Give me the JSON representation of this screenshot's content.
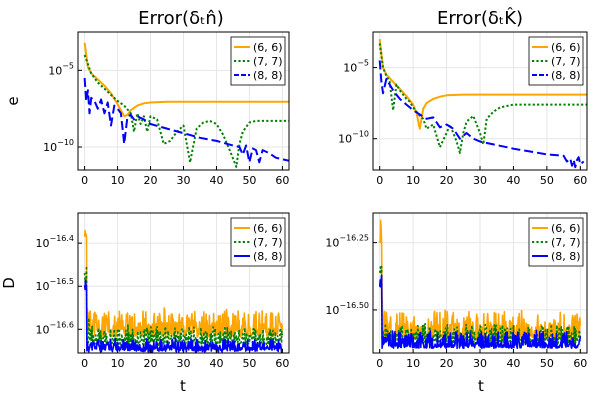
{
  "figure_type": "2x2 grid of line plots",
  "colors": {
    "(6, 6)": "#ffa500",
    "(7, 7)": "#008000",
    "(8, 8)": "#0000ff"
  },
  "chart_data": [
    {
      "id": "top-left",
      "type": "line",
      "title": "Error(δₜn̂)",
      "xlabel": "",
      "ylabel": "e",
      "yscale": "log10",
      "xlim": [
        -2,
        62
      ],
      "ylim_log10": [
        -11.5,
        -2.5
      ],
      "xticks": [
        0,
        10,
        20,
        30,
        40,
        50,
        60
      ],
      "xtick_labels": [
        "0",
        "10",
        "20",
        "30",
        "40",
        "50",
        "60"
      ],
      "yticks_log10": [
        -10,
        -5
      ],
      "ytick_labels": [
        {
          "base": "10",
          "exp": "−10"
        },
        {
          "base": "10",
          "exp": "−5"
        }
      ],
      "legend": {
        "position": "top-right",
        "entries": [
          "(6, 6)",
          "(7, 7)",
          "(8, 8)"
        ]
      },
      "series": [
        {
          "name": "(6, 6)",
          "color": "#ffa500",
          "dash": "solid",
          "x": [
            0,
            1,
            2,
            4,
            6,
            8,
            10,
            11,
            12,
            13,
            14,
            16,
            18,
            20,
            25,
            30,
            40,
            50,
            62
          ],
          "log10y": [
            -3.2,
            -4.8,
            -5.2,
            -5.6,
            -6.0,
            -6.5,
            -7.2,
            -7.6,
            -8.0,
            -7.9,
            -7.6,
            -7.3,
            -7.15,
            -7.1,
            -7.05,
            -7.05,
            -7.05,
            -7.05,
            -7.05
          ]
        },
        {
          "name": "(7, 7)",
          "color": "#008000",
          "dash": "dotted",
          "x": [
            0,
            2,
            4,
            6,
            8,
            10,
            12,
            14,
            15,
            16,
            17,
            18,
            19,
            20,
            22,
            24,
            26,
            28,
            30,
            32,
            34,
            36,
            38,
            40,
            42,
            44,
            46,
            47,
            48,
            50,
            52,
            56,
            62
          ],
          "log10y": [
            -4.0,
            -5.2,
            -5.8,
            -6.2,
            -6.6,
            -7.0,
            -7.3,
            -7.8,
            -9.0,
            -7.8,
            -8.5,
            -8.0,
            -9.0,
            -8.0,
            -8.2,
            -9.8,
            -9.6,
            -9.0,
            -8.6,
            -11.0,
            -8.8,
            -8.4,
            -8.3,
            -8.5,
            -9.2,
            -10.2,
            -11.3,
            -9.8,
            -9.0,
            -8.4,
            -8.3,
            -8.3,
            -8.3
          ]
        },
        {
          "name": "(8, 8)",
          "color": "#0000ff",
          "dash": "dashed",
          "x": [
            0,
            0.5,
            1,
            1.5,
            2,
            3,
            4,
            5,
            6,
            7,
            8,
            9,
            10,
            11,
            12,
            13,
            14,
            15,
            16,
            18,
            20,
            25,
            30,
            35,
            40,
            45,
            47,
            48,
            49,
            50,
            51,
            52,
            53,
            54,
            56,
            58,
            62
          ],
          "log10y": [
            -5.5,
            -7.0,
            -6.3,
            -7.8,
            -6.8,
            -7.0,
            -7.5,
            -6.9,
            -7.8,
            -7.1,
            -8.6,
            -7.3,
            -7.5,
            -7.8,
            -9.8,
            -8.0,
            -7.9,
            -8.2,
            -8.0,
            -8.2,
            -8.5,
            -8.8,
            -9.1,
            -9.4,
            -9.6,
            -9.9,
            -10.0,
            -10.5,
            -9.9,
            -11.0,
            -10.1,
            -10.2,
            -11.0,
            -10.2,
            -10.4,
            -10.7,
            -10.9
          ]
        }
      ]
    },
    {
      "id": "top-right",
      "type": "line",
      "title": "Error(δₜK̂)",
      "xlabel": "",
      "ylabel": "",
      "yscale": "log10",
      "xlim": [
        -2,
        62
      ],
      "ylim_log10": [
        -12.2,
        -2.5
      ],
      "xticks": [
        0,
        10,
        20,
        30,
        40,
        50,
        60
      ],
      "xtick_labels": [
        "0",
        "10",
        "20",
        "30",
        "40",
        "50",
        "60"
      ],
      "yticks_log10": [
        -10,
        -5
      ],
      "ytick_labels": [
        {
          "base": "10",
          "exp": "−10"
        },
        {
          "base": "10",
          "exp": "−5"
        }
      ],
      "legend": {
        "position": "top-right",
        "entries": [
          "(6, 6)",
          "(7, 7)",
          "(8, 8)"
        ]
      },
      "series": [
        {
          "name": "(6, 6)",
          "color": "#ffa500",
          "dash": "solid",
          "x": [
            0,
            1,
            2,
            4,
            6,
            8,
            10,
            11,
            12,
            13,
            14,
            16,
            18,
            20,
            25,
            30,
            40,
            50,
            62
          ],
          "log10y": [
            -3.0,
            -5.0,
            -5.5,
            -6.0,
            -6.5,
            -7.0,
            -7.6,
            -8.2,
            -9.3,
            -7.9,
            -7.5,
            -7.2,
            -7.05,
            -6.95,
            -6.9,
            -6.9,
            -6.9,
            -6.9,
            -6.9
          ]
        },
        {
          "name": "(7, 7)",
          "color": "#008000",
          "dash": "dotted",
          "x": [
            0,
            1,
            2,
            3,
            4,
            5,
            6,
            7,
            8,
            9,
            10,
            11,
            12,
            13,
            14,
            16,
            18,
            20,
            21,
            22,
            23,
            24,
            25,
            26,
            28,
            30,
            31,
            32,
            34,
            36,
            40,
            46,
            62
          ],
          "log10y": [
            -3.3,
            -5.0,
            -5.6,
            -6.0,
            -8.0,
            -6.2,
            -6.6,
            -6.9,
            -7.2,
            -7.4,
            -7.8,
            -8.1,
            -8.4,
            -8.6,
            -9.3,
            -9.0,
            -10.6,
            -9.6,
            -9.0,
            -9.6,
            -10.2,
            -11.0,
            -9.6,
            -8.8,
            -8.4,
            -9.6,
            -10.4,
            -8.6,
            -8.1,
            -7.8,
            -7.6,
            -7.6,
            -7.6
          ]
        },
        {
          "name": "(8, 8)",
          "color": "#0000ff",
          "dash": "dashed",
          "x": [
            0,
            0.5,
            1,
            2,
            3,
            4,
            5,
            6,
            7,
            8,
            9,
            10,
            12,
            14,
            16,
            18,
            20,
            22,
            24,
            26,
            28,
            30,
            32,
            34,
            36,
            38,
            40,
            45,
            50,
            55,
            56,
            57,
            57.5,
            58,
            58.5,
            59,
            59.5,
            60,
            61
          ],
          "log10y": [
            -4.5,
            -6.0,
            -6.8,
            -5.8,
            -6.2,
            -6.6,
            -6.9,
            -7.2,
            -7.4,
            -7.6,
            -7.8,
            -8.0,
            -8.3,
            -8.6,
            -8.5,
            -9.2,
            -9.0,
            -9.3,
            -10.0,
            -9.6,
            -10.0,
            -10.2,
            -10.3,
            -10.4,
            -10.5,
            -10.6,
            -10.7,
            -10.9,
            -11.1,
            -11.2,
            -11.6,
            -11.4,
            -11.9,
            -11.5,
            -12.0,
            -11.5,
            -11.3,
            -11.8,
            -11.6
          ]
        }
      ]
    },
    {
      "id": "bottom-left",
      "type": "line",
      "title": "",
      "xlabel": "t",
      "ylabel": "D",
      "yscale": "log10",
      "xlim": [
        -2,
        62
      ],
      "ylim_log10": [
        -16.655,
        -16.33
      ],
      "xticks": [
        0,
        10,
        20,
        30,
        40,
        50,
        60
      ],
      "xtick_labels": [
        "0",
        "10",
        "20",
        "30",
        "40",
        "50",
        "60"
      ],
      "yticks_log10": [
        -16.6,
        -16.5,
        -16.4
      ],
      "ytick_labels": [
        {
          "base": "10",
          "exp": "−16.6"
        },
        {
          "base": "10",
          "exp": "−16.5"
        },
        {
          "base": "10",
          "exp": "−16.4"
        }
      ],
      "legend": {
        "position": "top-right",
        "entries": [
          "(6, 6)",
          "(7, 7)",
          "(8, 8)"
        ]
      },
      "noise_series": [
        {
          "name": "(6, 6)",
          "color": "#ffa500",
          "dash": "solid",
          "base_log10": -16.61,
          "spread": 0.06,
          "initial_peak_log10": -16.36
        },
        {
          "name": "(7, 7)",
          "color": "#008000",
          "dash": "dotted",
          "base_log10": -16.63,
          "spread": 0.04,
          "initial_peak_log10": -16.45
        },
        {
          "name": "(8, 8)",
          "color": "#0000ff",
          "dash": "solid",
          "base_log10": -16.645,
          "spread": 0.025,
          "initial_peak_log10": -16.48
        }
      ]
    },
    {
      "id": "bottom-right",
      "type": "line",
      "title": "",
      "xlabel": "t",
      "ylabel": "",
      "yscale": "log10",
      "xlim": [
        -2,
        62
      ],
      "ylim_log10": [
        -16.66,
        -16.14
      ],
      "xticks": [
        0,
        10,
        20,
        30,
        40,
        50,
        60
      ],
      "xtick_labels": [
        "0",
        "10",
        "20",
        "30",
        "40",
        "50",
        "60"
      ],
      "yticks_log10": [
        -16.5,
        -16.25
      ],
      "ytick_labels": [
        {
          "base": "10",
          "exp": "−16.50"
        },
        {
          "base": "10",
          "exp": "−16.25"
        }
      ],
      "legend": {
        "position": "top-right",
        "entries": [
          "(6, 6)",
          "(7, 7)",
          "(8, 8)"
        ]
      },
      "noise_series": [
        {
          "name": "(6, 6)",
          "color": "#ffa500",
          "dash": "solid",
          "base_log10": -16.6,
          "spread": 0.1,
          "initial_peak_log10": -16.16
        },
        {
          "name": "(7, 7)",
          "color": "#008000",
          "dash": "dotted",
          "base_log10": -16.62,
          "spread": 0.07,
          "initial_peak_log10": -16.3
        },
        {
          "name": "(8, 8)",
          "color": "#0000ff",
          "dash": "solid",
          "base_log10": -16.635,
          "spread": 0.06,
          "initial_peak_log10": -16.36
        }
      ]
    }
  ]
}
